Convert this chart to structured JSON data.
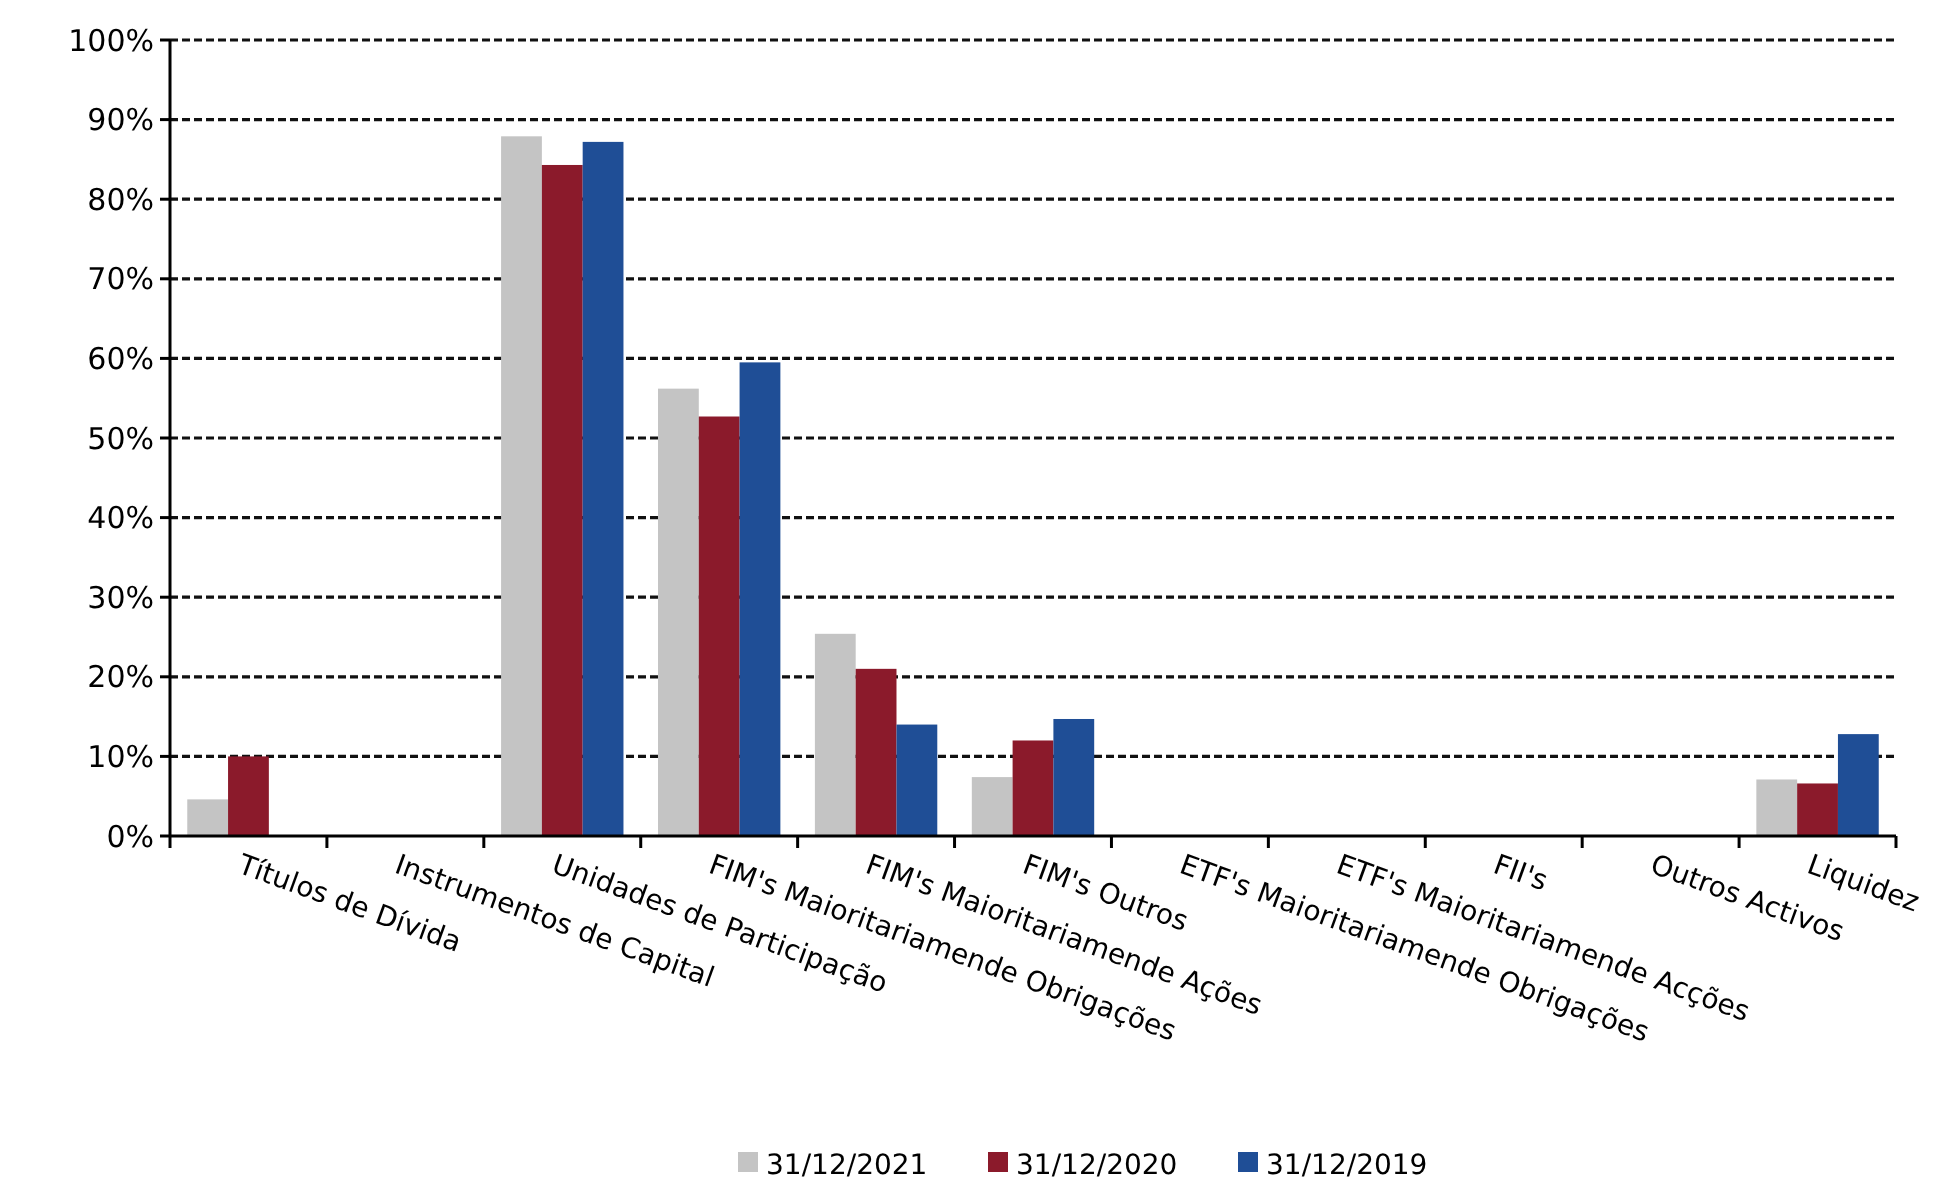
{
  "chart_data": {
    "type": "bar",
    "categories": [
      "Títulos de Dívida",
      "Instrumentos de Capital",
      "Unidades de Participação",
      "FIM's Maioritariamende Obrigações",
      "FIM's Maioritariamende Ações",
      "FIM's Outros",
      "ETF's Maioritariamende Obrigações",
      "ETF's Maioritariamende Acções",
      "FII's",
      "Outros Activos",
      "Liquidez"
    ],
    "series": [
      {
        "name": "31/12/2021",
        "color": "#c4c4c4",
        "values": [
          4.6,
          null,
          87.9,
          56.2,
          25.4,
          7.4,
          null,
          null,
          null,
          null,
          7.1
        ]
      },
      {
        "name": "31/12/2020",
        "color": "#8b1a2b",
        "values": [
          10.0,
          null,
          84.3,
          52.7,
          21.0,
          12.0,
          null,
          null,
          null,
          null,
          6.6
        ]
      },
      {
        "name": "31/12/2019",
        "color": "#1f4e96",
        "values": [
          null,
          null,
          87.2,
          59.5,
          14.0,
          14.7,
          null,
          null,
          null,
          null,
          12.8
        ]
      }
    ],
    "ylim": [
      0,
      100
    ],
    "yticks": [
      {
        "value": 0,
        "label": "0%"
      },
      {
        "value": 10,
        "label": "10%"
      },
      {
        "value": 20,
        "label": "20%"
      },
      {
        "value": 30,
        "label": "30%"
      },
      {
        "value": 40,
        "label": "40%"
      },
      {
        "value": 50,
        "label": "50%"
      },
      {
        "value": 60,
        "label": "60%"
      },
      {
        "value": 70,
        "label": "70%"
      },
      {
        "value": 80,
        "label": "80%"
      },
      {
        "value": 90,
        "label": "90%"
      },
      {
        "value": 100,
        "label": "100%"
      }
    ],
    "grid": "y",
    "legend": "bottom"
  }
}
